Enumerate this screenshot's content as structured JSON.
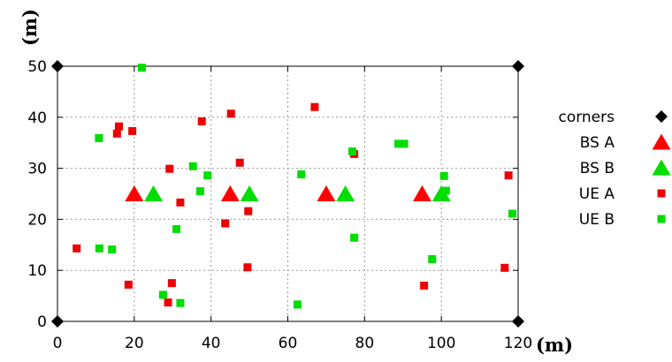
{
  "chart_data": {
    "type": "scatter",
    "xlabel": "(m)",
    "ylabel": "(m)",
    "xlim": [
      0,
      120
    ],
    "ylim": [
      0,
      50
    ],
    "xticks": [
      0,
      20,
      40,
      60,
      80,
      100,
      120
    ],
    "yticks": [
      0,
      10,
      20,
      30,
      40,
      50
    ],
    "grid": true,
    "legend_position": "right",
    "series": [
      {
        "name": "corners",
        "marker": "diamond",
        "color": "#000000",
        "points": [
          [
            0,
            0
          ],
          [
            0,
            50
          ],
          [
            120,
            0
          ],
          [
            120,
            50
          ]
        ]
      },
      {
        "name": "BS A",
        "marker": "triangle",
        "color": "#ff0000",
        "points": [
          [
            20,
            25
          ],
          [
            45,
            25
          ],
          [
            70,
            25
          ],
          [
            95,
            25
          ]
        ]
      },
      {
        "name": "BS B",
        "marker": "triangle",
        "color": "#00dd00",
        "points": [
          [
            25,
            25
          ],
          [
            50,
            25
          ],
          [
            75,
            25
          ],
          [
            100,
            25
          ]
        ]
      },
      {
        "name": "UE A",
        "marker": "square",
        "color": "#ee0000",
        "points": [
          [
            5,
            14.3
          ],
          [
            15.5,
            36.8
          ],
          [
            16,
            38.2
          ],
          [
            18.5,
            7.2
          ],
          [
            19.5,
            37.3
          ],
          [
            28.8,
            3.7
          ],
          [
            29.2,
            29.9
          ],
          [
            29.8,
            7.5
          ],
          [
            32,
            23.3
          ],
          [
            37.6,
            39.2
          ],
          [
            43.7,
            19.2
          ],
          [
            45.2,
            40.7
          ],
          [
            47.5,
            31.1
          ],
          [
            49.5,
            10.6
          ],
          [
            49.7,
            21.6
          ],
          [
            67,
            42
          ],
          [
            77.3,
            32.8
          ],
          [
            95.5,
            7
          ],
          [
            116.5,
            10.5
          ],
          [
            117.5,
            28.6
          ]
        ]
      },
      {
        "name": "UE B",
        "marker": "square",
        "color": "#00dd00",
        "points": [
          [
            10.8,
            35.9
          ],
          [
            10.9,
            14.3
          ],
          [
            14.2,
            14.1
          ],
          [
            22,
            49.7
          ],
          [
            27.5,
            5.2
          ],
          [
            31,
            18.1
          ],
          [
            32,
            3.6
          ],
          [
            35.3,
            30.4
          ],
          [
            37.2,
            25.5
          ],
          [
            39.1,
            28.6
          ],
          [
            62.5,
            3.3
          ],
          [
            63.5,
            28.8
          ],
          [
            76.8,
            33.3
          ],
          [
            77.3,
            16.4
          ],
          [
            88.8,
            34.8
          ],
          [
            90.3,
            34.8
          ],
          [
            97.6,
            12.2
          ],
          [
            100.7,
            28.5
          ],
          [
            101.2,
            25.6
          ],
          [
            118.5,
            21.1
          ]
        ]
      }
    ]
  }
}
